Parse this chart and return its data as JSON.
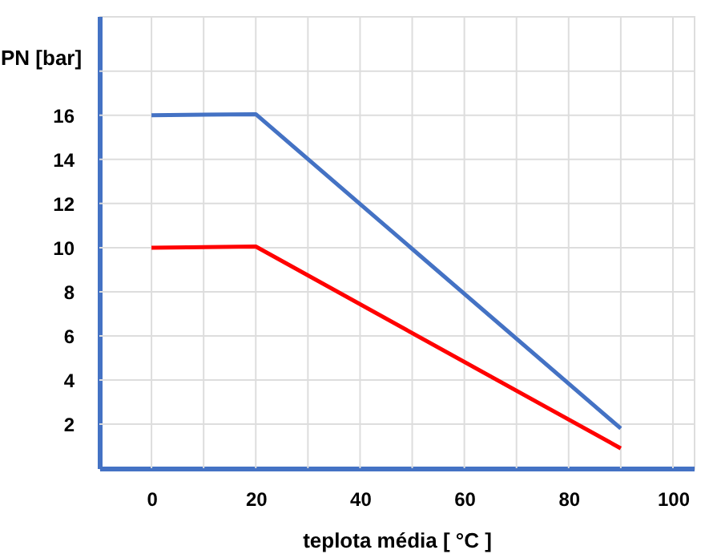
{
  "chart_data": {
    "type": "line",
    "xlabel": "teplota média [ °C  ]",
    "ylabel": "PN [bar]",
    "xlim": [
      -10,
      104
    ],
    "ylim": [
      0,
      20.5
    ],
    "xticks": [
      0,
      {
        "value": 10,
        "label": null
      },
      20,
      {
        "value": 30,
        "label": null
      },
      40,
      {
        "value": 50,
        "label": null
      },
      60,
      {
        "value": 70,
        "label": null
      },
      80,
      {
        "value": 90,
        "label": null
      },
      100
    ],
    "yticks": [
      2,
      4,
      6,
      8,
      10,
      12,
      14,
      16,
      {
        "value": 18,
        "label": null
      }
    ],
    "grid": true,
    "marker": "none",
    "line_style": "solid",
    "series": [
      {
        "color": "#4472c4",
        "x": [
          0,
          20,
          90
        ],
        "values": [
          16,
          16.05,
          1.8
        ]
      },
      {
        "color": "#ff0000",
        "x": [
          0,
          20,
          90
        ],
        "values": [
          10,
          10.05,
          0.9
        ]
      }
    ]
  }
}
